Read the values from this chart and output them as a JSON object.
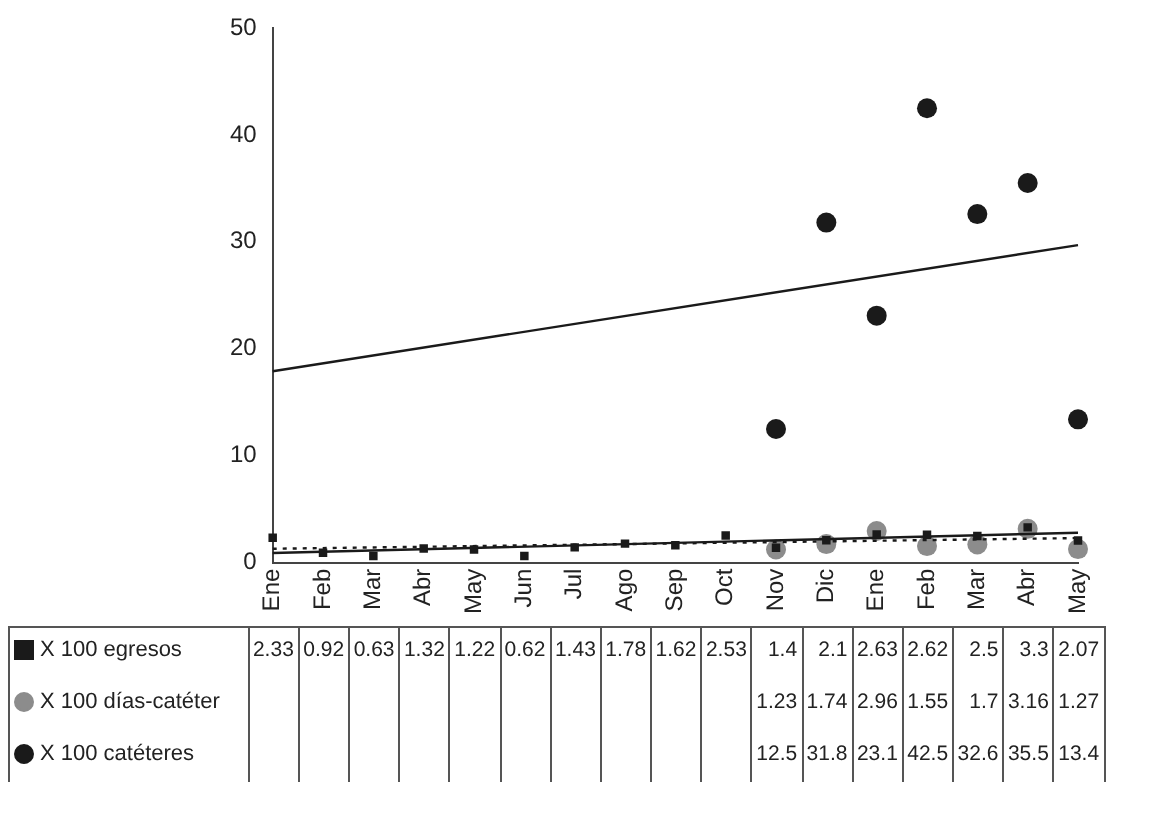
{
  "chart_data": {
    "type": "scatter",
    "categories": [
      "Ene",
      "Feb",
      "Mar",
      "Abr",
      "May",
      "Jun",
      "Jul",
      "Ago",
      "Sep",
      "Oct",
      "Nov",
      "Dic",
      "Ene",
      "Feb",
      "Mar",
      "Abr",
      "May"
    ],
    "series": [
      {
        "name": "X 100 egresos",
        "color": "#1a1a1a",
        "marker": "square",
        "values": [
          2.33,
          0.92,
          0.63,
          1.32,
          1.22,
          0.62,
          1.43,
          1.78,
          1.62,
          2.53,
          1.4,
          2.1,
          2.63,
          2.62,
          2.5,
          3.3,
          2.07
        ],
        "value_labels": [
          "2.33",
          "0.92",
          "0.63",
          "1.32",
          "1.22",
          "0.62",
          "1.43",
          "1.78",
          "1.62",
          "2.53",
          "1.4",
          "2.1",
          "2.63",
          "2.62",
          "2.5",
          "3.3",
          "2.07"
        ]
      },
      {
        "name": "X 100 días-catéter",
        "color": "#8c8c8c",
        "marker": "circle",
        "values": [
          null,
          null,
          null,
          null,
          null,
          null,
          null,
          null,
          null,
          null,
          1.23,
          1.74,
          2.96,
          1.55,
          1.7,
          3.16,
          1.27
        ],
        "value_labels": [
          null,
          null,
          null,
          null,
          null,
          null,
          null,
          null,
          null,
          null,
          "1.23",
          "1.74",
          "2.96",
          "1.55",
          "1.7",
          "3.16",
          "1.27"
        ]
      },
      {
        "name": "X 100 catéteres",
        "color": "#1a1a1a",
        "marker": "circle",
        "values": [
          null,
          null,
          null,
          null,
          null,
          null,
          null,
          null,
          null,
          null,
          12.5,
          31.8,
          23.1,
          42.5,
          32.6,
          35.5,
          13.4
        ],
        "value_labels": [
          null,
          null,
          null,
          null,
          null,
          null,
          null,
          null,
          null,
          null,
          "12.5",
          "31.8",
          "23.1",
          "42.5",
          "32.6",
          "35.5",
          "13.4"
        ]
      },
      {
        "type": "line",
        "color": "#1a1a1a",
        "line_style": "solid",
        "values": [
          17.9,
          null,
          null,
          null,
          null,
          null,
          null,
          null,
          null,
          null,
          null,
          null,
          null,
          null,
          null,
          null,
          29.7
        ]
      },
      {
        "type": "line",
        "color": "#1a1a1a",
        "line_style": "solid",
        "values": [
          0.9,
          null,
          null,
          null,
          null,
          null,
          null,
          null,
          null,
          null,
          null,
          null,
          null,
          null,
          null,
          null,
          2.8
        ]
      },
      {
        "type": "line",
        "color": "#1a1a1a",
        "line_style": "dotted",
        "values": [
          1.3,
          null,
          null,
          null,
          null,
          null,
          null,
          null,
          null,
          null,
          null,
          null,
          null,
          null,
          null,
          null,
          2.3
        ]
      }
    ],
    "ylim": [
      0,
      50
    ],
    "yticks": [
      0,
      10,
      20,
      30,
      40,
      50
    ],
    "grid": false,
    "legend": "bottom"
  }
}
